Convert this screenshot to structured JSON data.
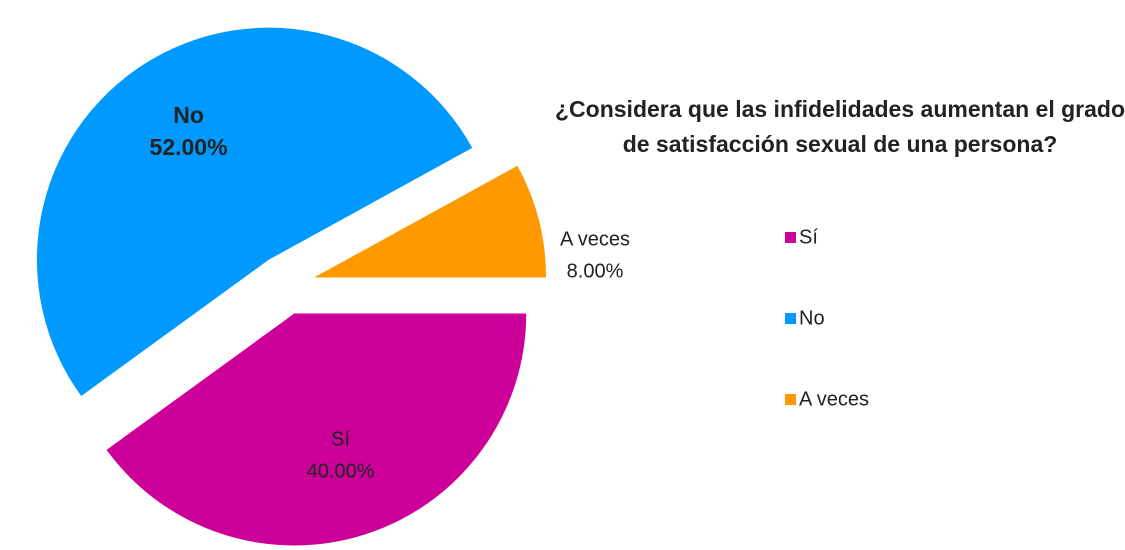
{
  "chart_data": {
    "type": "pie",
    "title": "¿Considera que las infidelidades aumentan el grado de satisfacción sexual de una persona?",
    "categories": [
      "Sí",
      "No",
      "A veces"
    ],
    "values": [
      40,
      52,
      8
    ],
    "value_labels": [
      "40.00%",
      "52.00%",
      "8.00%"
    ],
    "colors": [
      "#cc0099",
      "#0099ff",
      "#ff9900"
    ],
    "legend": "right"
  }
}
